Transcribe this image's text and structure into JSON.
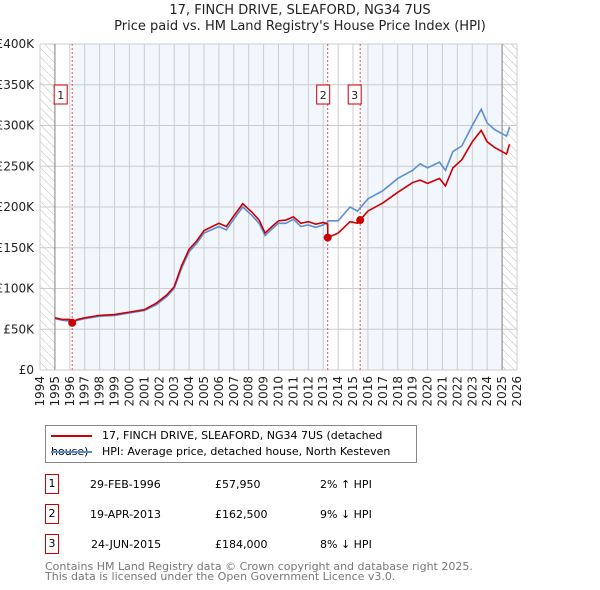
{
  "chart_data": {
    "type": "line",
    "title": "17, FINCH DRIVE, SLEAFORD, NG34 7US",
    "subtitle": "Price paid vs. HM Land Registry's House Price Index (HPI)",
    "xlim": [
      1994,
      2026
    ],
    "ylim": [
      0,
      400000
    ],
    "x_ticks": [
      1994,
      1995,
      1996,
      1997,
      1998,
      1999,
      2000,
      2001,
      2002,
      2003,
      2004,
      2005,
      2006,
      2007,
      2008,
      2009,
      2010,
      2011,
      2012,
      2013,
      2014,
      2015,
      2016,
      2017,
      2018,
      2019,
      2020,
      2021,
      2022,
      2023,
      2024,
      2025,
      2026
    ],
    "y_ticks": [
      {
        "v": 0,
        "label": "£0"
      },
      {
        "v": 50000,
        "label": "£50K"
      },
      {
        "v": 100000,
        "label": "£100K"
      },
      {
        "v": 150000,
        "label": "£150K"
      },
      {
        "v": 200000,
        "label": "£200K"
      },
      {
        "v": 250000,
        "label": "£250K"
      },
      {
        "v": 300000,
        "label": "£300K"
      },
      {
        "v": 350000,
        "label": "£350K"
      },
      {
        "v": 400000,
        "label": "£400K"
      }
    ],
    "grid": true,
    "series": [
      {
        "name": "17, FINCH DRIVE, SLEAFORD, NG34 7US (detached house)",
        "color": "#cc0000",
        "x": [
          1995,
          1995.5,
          1996,
          1996.16,
          1996.5,
          1997,
          1998,
          1999,
          2000,
          2001,
          2001.8,
          2002.5,
          2003,
          2003.5,
          2004,
          2004.5,
          2005,
          2006,
          2006.5,
          2007,
          2007.6,
          2008.2,
          2008.7,
          2009.1,
          2009.5,
          2010,
          2010.5,
          2011,
          2011.5,
          2012,
          2012.5,
          2013,
          2013.3,
          2013.31,
          2014,
          2014.8,
          2015.3,
          2015.48,
          2016,
          2017,
          2018,
          2019,
          2019.5,
          2020,
          2020.8,
          2021.2,
          2021.7,
          2022.3,
          2023,
          2023.6,
          2024,
          2024.5,
          2025.3,
          2025.5
        ],
        "y": [
          64000,
          62000,
          62000,
          57950,
          62000,
          64000,
          67000,
          68000,
          71000,
          74000,
          82000,
          92000,
          102000,
          128000,
          148000,
          158000,
          171000,
          180000,
          176000,
          189000,
          204000,
          194000,
          184000,
          168000,
          175000,
          183000,
          184000,
          188000,
          180000,
          182000,
          179000,
          181000,
          179000,
          162500,
          168000,
          182000,
          180000,
          184000,
          195000,
          205000,
          218000,
          230000,
          233000,
          229000,
          235000,
          226000,
          248000,
          258000,
          280000,
          294000,
          280000,
          273000,
          265000,
          277000
        ]
      },
      {
        "name": "HPI: Average price, detached house, North Kesteven",
        "color": "#5b8fd4",
        "x": [
          1995,
          1995.5,
          1996,
          1996.5,
          1997,
          1998,
          1999,
          2000,
          2001,
          2001.8,
          2002.5,
          2003,
          2003.5,
          2004,
          2004.5,
          2005,
          2006,
          2006.5,
          2007,
          2007.6,
          2008.2,
          2008.7,
          2009.1,
          2009.5,
          2010,
          2010.5,
          2011,
          2011.5,
          2012,
          2012.5,
          2013,
          2013.4,
          2014,
          2014.8,
          2015.3,
          2016,
          2017,
          2018,
          2019,
          2019.5,
          2020,
          2020.8,
          2021.2,
          2021.7,
          2022.3,
          2023,
          2023.6,
          2024,
          2024.5,
          2025.3,
          2025.5
        ],
        "y": [
          63000,
          61000,
          60000,
          61000,
          63000,
          66000,
          67000,
          70000,
          73000,
          80000,
          90000,
          100000,
          125000,
          145000,
          155000,
          168000,
          176000,
          172000,
          185000,
          200000,
          190000,
          180000,
          165000,
          172000,
          180000,
          180000,
          185000,
          176000,
          178000,
          175000,
          178000,
          183000,
          183000,
          200000,
          195000,
          210000,
          220000,
          235000,
          245000,
          253000,
          248000,
          255000,
          245000,
          268000,
          275000,
          300000,
          320000,
          303000,
          295000,
          287000,
          298000
        ]
      }
    ],
    "sales": [
      {
        "num": "1",
        "x": 1996.16,
        "y": 57950,
        "date": "29-FEB-1996",
        "price": "£57,950",
        "hpi": "2% ↑ HPI"
      },
      {
        "num": "2",
        "x": 2013.3,
        "y": 162500,
        "date": "19-APR-2013",
        "price": "£162,500",
        "hpi": "9% ↓ HPI"
      },
      {
        "num": "3",
        "x": 2015.48,
        "y": 184000,
        "date": "24-JUN-2015",
        "price": "£184,000",
        "hpi": "8% ↓ HPI"
      }
    ],
    "legend_placement": "below"
  },
  "footer": [
    "Contains HM Land Registry data © Crown copyright and database right 2025.",
    "This data is licensed under the Open Government Licence v3.0."
  ]
}
